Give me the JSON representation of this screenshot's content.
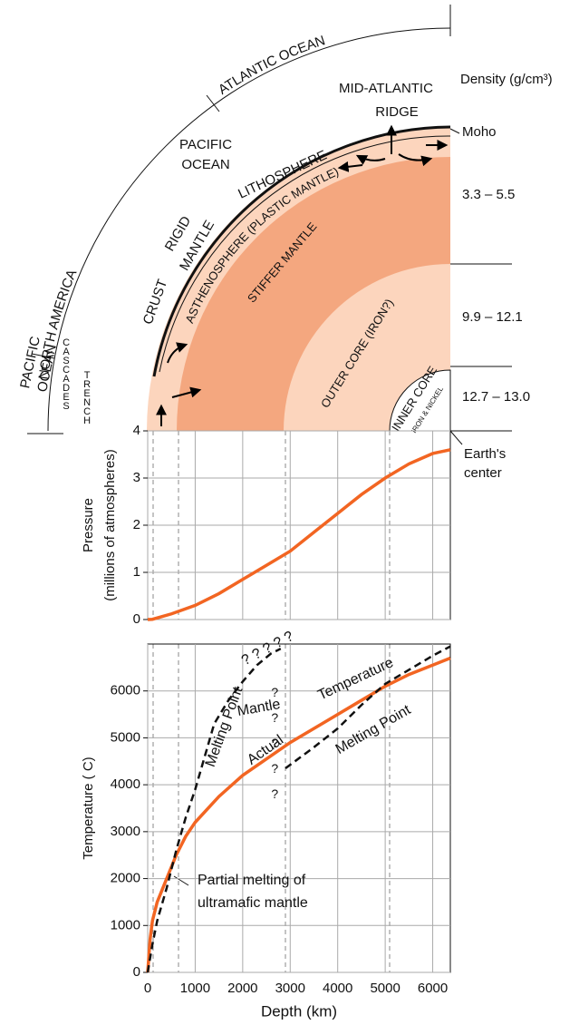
{
  "diagram": {
    "labels": [
      "ATLANTIC OCEAN",
      "NORTH AMERICA",
      "PACIFIC",
      "OCEAN",
      "PACIFIC",
      "OCEAN",
      "MID-ATLANTIC",
      "RIDGE",
      "LITHOSPHERE",
      "RIGID",
      "MANTLE",
      "CRUST",
      "ASTHENOSPHERE (PLASTIC MANTLE)",
      "STIFFER MANTLE",
      "OUTER CORE (IRON?)",
      "INNER CORE",
      "IRON & NICKEL",
      "CASCADES",
      "TRENCH",
      "Density (g/cm³)",
      "Moho",
      "3.3 – 5.5",
      "9.9 – 12.1",
      "12.7 – 13.0",
      "Earth's",
      "center"
    ]
  },
  "chart_data": [
    {
      "type": "line",
      "ylabel": [
        "Pressure",
        "(millions of atmospheres)"
      ],
      "xlim": [
        0,
        6371
      ],
      "xticks": [
        0,
        1000,
        2000,
        3000,
        4000,
        5000,
        6000
      ],
      "ylim": [
        0,
        4
      ],
      "yticks": [
        0,
        1,
        2,
        3,
        4
      ],
      "grid": true,
      "series": [
        {
          "color": "#f26522",
          "dash": false,
          "x": [
            0,
            100,
            500,
            1000,
            1500,
            2000,
            2500,
            3000,
            3500,
            4000,
            4500,
            5000,
            5500,
            6000,
            6371
          ],
          "values": [
            0,
            0.005,
            0.12,
            0.3,
            0.55,
            0.85,
            1.15,
            1.45,
            1.85,
            2.25,
            2.65,
            3.0,
            3.3,
            3.52,
            3.6
          ]
        }
      ]
    },
    {
      "type": "line",
      "ylabel": [
        "Temperature ( C)"
      ],
      "xlabel": "Depth (km)",
      "xlim": [
        0,
        6371
      ],
      "xticks": [
        0,
        1000,
        2000,
        3000,
        4000,
        5000,
        6000
      ],
      "ylim": [
        0,
        7000
      ],
      "yticks": [
        0,
        1000,
        2000,
        3000,
        4000,
        5000,
        6000
      ],
      "grid": true,
      "series": [
        {
          "color": "#f26522",
          "dash": false,
          "x": [
            0,
            50,
            100,
            200,
            400,
            600,
            800,
            1000,
            1500,
            2000,
            2500,
            3000,
            3500,
            4000,
            4500,
            5000,
            5500,
            6000,
            6371
          ],
          "values": [
            0,
            700,
            1100,
            1500,
            2000,
            2500,
            2900,
            3200,
            3750,
            4200,
            4550,
            4900,
            5200,
            5500,
            5800,
            6100,
            6350,
            6550,
            6700
          ]
        },
        {
          "color": "#111111",
          "dash": true,
          "x": [
            0,
            100,
            200,
            400,
            600,
            800,
            1000,
            1200,
            1400,
            1700,
            2000,
            2300,
            2600,
            2800
          ],
          "values": [
            0,
            600,
            1100,
            1800,
            2600,
            3300,
            3900,
            4600,
            5300,
            5800,
            6200,
            6550,
            6800,
            6900
          ]
        },
        {
          "color": "#111111",
          "dash": true,
          "x": [
            2900,
            3500,
            4000,
            4500,
            5000,
            5500,
            6000,
            6371
          ],
          "values": [
            4350,
            4800,
            5200,
            5700,
            6150,
            6450,
            6750,
            6950
          ]
        }
      ],
      "annotations": [
        "Mantle",
        "Melting Point",
        "Actual",
        "Temperature",
        "Melting Point",
        "? ? ? ? ?",
        "? ? ? ? ?",
        "Partial melting of",
        "ultramafic mantle"
      ]
    }
  ]
}
